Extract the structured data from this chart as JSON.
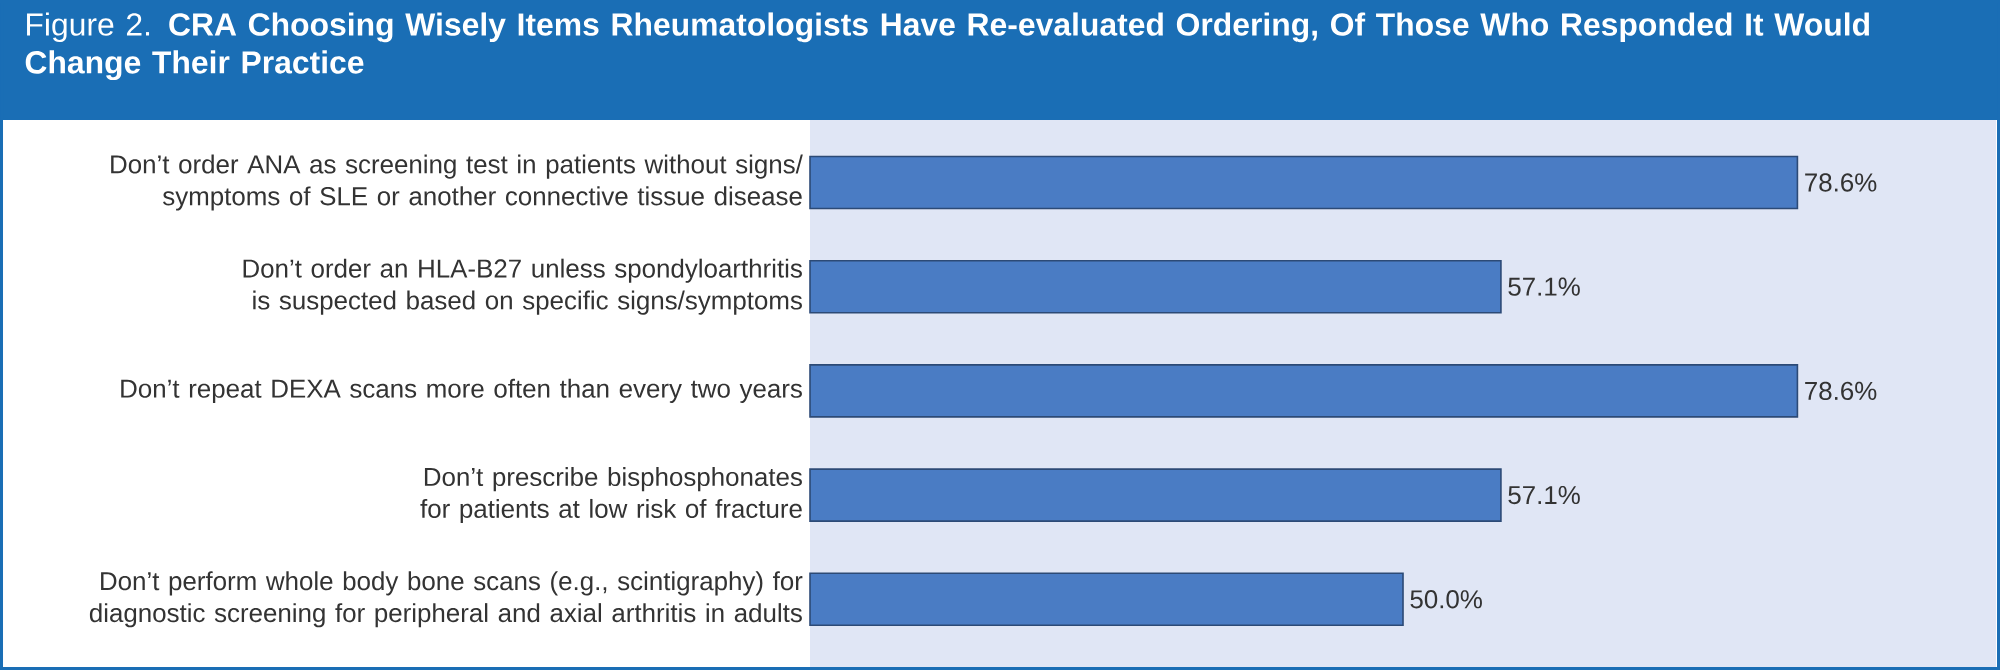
{
  "chart_data": {
    "type": "bar",
    "orientation": "horizontal",
    "title": "Figure 2. **CRA Choosing Wisely Items Rheumatologists Have Re-evaluated Ordering, Of Those Who Responded It Would Change Their Practice**",
    "categories": [
      "Don’t order ANA as screening test in patients without signs/ symptoms of SLE or another connective tissue disease",
      "Don’t order an HLA-B27 unless spondyloarthritis is suspected based on specific signs/symptoms",
      "Don’t repeat DEXA scans more often than every two years",
      "Don’t prescribe bisphosphonates for patients at low risk of fracture",
      "Don’t perform whole body bone scans (e.g., scintigraphy) for diagnostic screening for peripheral and axial arthritis in adults"
    ],
    "values": [
      78.6,
      57.1,
      78.6,
      57.1,
      50.0
    ],
    "value_labels": [
      "78.6%",
      "57.1%",
      "78.6%",
      "57.1%",
      "50.0%"
    ],
    "color": "#4a7cc4",
    "xlim": [
      7,
      93
    ]
  }
}
